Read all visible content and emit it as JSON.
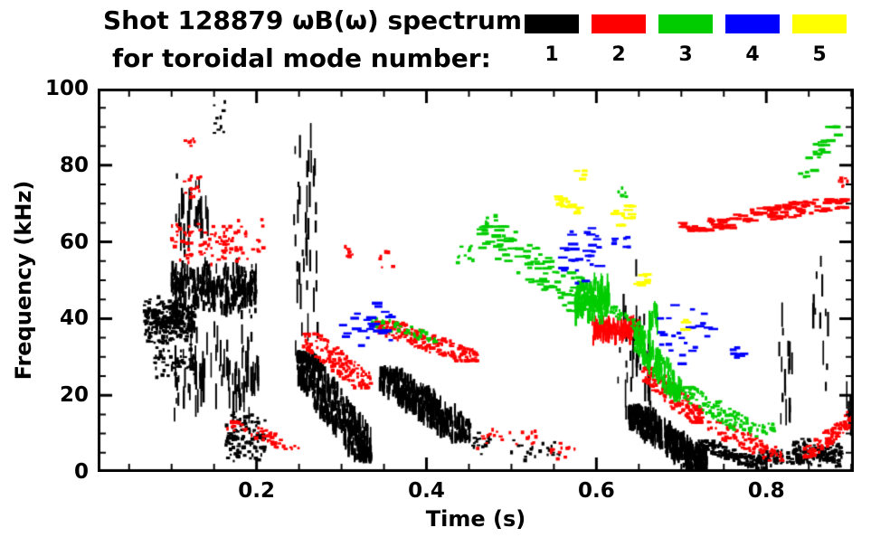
{
  "chart_data": {
    "type": "scatter",
    "title": "Shot 128879 ωB(ω) spectrum",
    "subtitle": "for toroidal mode number:",
    "xlabel": "Time (s)",
    "ylabel": "Frequency (kHz)",
    "xlim": [
      0.013,
      0.903
    ],
    "ylim": [
      0,
      100
    ],
    "xticks": [
      0.2,
      0.4,
      0.6,
      0.8
    ],
    "xtick_labels": [
      "0.2",
      "0.4",
      "0.6",
      "0.8"
    ],
    "yticks": [
      0,
      20,
      40,
      60,
      80,
      100
    ],
    "ytick_labels": [
      "0",
      "20",
      "40",
      "60",
      "80",
      "100"
    ],
    "x_minor_step": 0.05,
    "y_minor_step": 5,
    "grid": false,
    "legend_position": "top-right",
    "legend": [
      {
        "label": "1",
        "color": "#000000"
      },
      {
        "label": "2",
        "color": "#ff0000"
      },
      {
        "label": "3",
        "color": "#00cc00"
      },
      {
        "label": "4",
        "color": "#0000ff"
      },
      {
        "label": "5",
        "color": "#ffff00"
      }
    ],
    "series": [
      {
        "name": "n=1",
        "color": "#000000",
        "clusters": [
          {
            "t": [
              0.068,
              0.128
            ],
            "f": [
              33,
              46
            ],
            "n": 300
          },
          {
            "t": [
              0.08,
              0.128
            ],
            "f": [
              24,
              33
            ],
            "n": 55
          },
          {
            "t": [
              0.1,
              0.2
            ],
            "f": [
              40,
              56
            ],
            "n": 280,
            "style": "stripes"
          },
          {
            "t": [
              0.1,
              0.2
            ],
            "f": [
              14,
              40
            ],
            "n": 70,
            "style": "streaks"
          },
          {
            "t": [
              0.105,
              0.145
            ],
            "f": [
              56,
              80
            ],
            "n": 34,
            "style": "streaks"
          },
          {
            "t": [
              0.15,
              0.168
            ],
            "f": [
              86,
              97
            ],
            "n": 10
          },
          {
            "t": [
              0.163,
              0.21
            ],
            "f": [
              2,
              16
            ],
            "n": 120
          },
          {
            "t": [
              0.175,
              0.205
            ],
            "f": [
              16,
              30
            ],
            "n": 26,
            "style": "streaks"
          },
          {
            "t": [
              0.243,
              0.272
            ],
            "f": [
              20,
              97
            ],
            "n": 40,
            "style": "streaks"
          },
          {
            "t": [
              0.248,
              0.335
            ],
            "f": [
              4,
              30
            ],
            "n": 430,
            "style": "stripes",
            "trend": "down"
          },
          {
            "t": [
              0.345,
              0.452
            ],
            "f": [
              9,
              26
            ],
            "n": 340,
            "style": "stripes",
            "trend": "down"
          },
          {
            "t": [
              0.455,
              0.475
            ],
            "f": [
              4,
              11
            ],
            "n": 16
          },
          {
            "t": [
              0.5,
              0.565
            ],
            "f": [
              2,
              9
            ],
            "n": 22
          },
          {
            "t": [
              0.625,
              0.665
            ],
            "f": [
              5,
              55
            ],
            "n": 34,
            "style": "streaks"
          },
          {
            "t": [
              0.638,
              0.73
            ],
            "f": [
              1,
              16
            ],
            "n": 430,
            "style": "stripes",
            "trend": "down"
          },
          {
            "t": [
              0.72,
              0.8
            ],
            "f": [
              1,
              8
            ],
            "n": 140,
            "trend": "down"
          },
          {
            "t": [
              0.79,
              0.89
            ],
            "f": [
              1,
              6
            ],
            "n": 130
          },
          {
            "t": [
              0.83,
              0.89
            ],
            "f": [
              2,
              9
            ],
            "n": 90
          },
          {
            "t": [
              0.815,
              0.832
            ],
            "f": [
              8,
              46
            ],
            "n": 16,
            "style": "streaks"
          },
          {
            "t": [
              0.855,
              0.875
            ],
            "f": [
              10,
              60
            ],
            "n": 12,
            "style": "streaks"
          },
          {
            "t": [
              0.893,
              0.902
            ],
            "f": [
              8,
              22
            ],
            "n": 10,
            "style": "streaks"
          }
        ]
      },
      {
        "name": "n=2",
        "color": "#ff0000",
        "clusters": [
          {
            "t": [
              0.1,
              0.21
            ],
            "f": [
              54,
              66
            ],
            "n": 110
          },
          {
            "t": [
              0.115,
              0.135
            ],
            "f": [
              70,
              79
            ],
            "n": 16
          },
          {
            "t": [
              0.115,
              0.127
            ],
            "f": [
              84,
              88
            ],
            "n": 6
          },
          {
            "t": [
              0.165,
              0.25
            ],
            "f": [
              6,
              13
            ],
            "n": 55,
            "trend": "down"
          },
          {
            "t": [
              0.255,
              0.335
            ],
            "f": [
              22,
              36
            ],
            "n": 150,
            "trend": "down"
          },
          {
            "t": [
              0.34,
              0.46
            ],
            "f": [
              29,
              39
            ],
            "n": 220,
            "trend": "down"
          },
          {
            "t": [
              0.295,
              0.315
            ],
            "f": [
              54,
              60
            ],
            "n": 8
          },
          {
            "t": [
              0.46,
              0.53
            ],
            "f": [
              6,
              12
            ],
            "n": 22
          },
          {
            "t": [
              0.545,
              0.575
            ],
            "f": [
              3,
              8
            ],
            "n": 12
          },
          {
            "t": [
              0.595,
              0.65
            ],
            "f": [
              34,
              40
            ],
            "n": 150,
            "style": "stripes"
          },
          {
            "t": [
              0.655,
              0.725
            ],
            "f": [
              13,
              27
            ],
            "n": 180,
            "trend": "down"
          },
          {
            "t": [
              0.73,
              0.82
            ],
            "f": [
              3,
              13
            ],
            "n": 90,
            "trend": "down"
          },
          {
            "t": [
              0.7,
              0.895
            ],
            "f": [
              63,
              71
            ],
            "n": 130,
            "style": "dashes",
            "trend": "up"
          },
          {
            "t": [
              0.845,
              0.895
            ],
            "f": [
              4,
              13
            ],
            "n": 85,
            "trend": "up"
          },
          {
            "t": [
              0.893,
              0.902
            ],
            "f": [
              10,
              16
            ],
            "n": 10
          },
          {
            "t": [
              0.885,
              0.9
            ],
            "f": [
              73,
              79
            ],
            "n": 7
          },
          {
            "t": [
              0.345,
              0.365
            ],
            "f": [
              53,
              58
            ],
            "n": 6
          }
        ]
      },
      {
        "name": "n=3",
        "color": "#00cc00",
        "clusters": [
          {
            "t": [
              0.33,
              0.42
            ],
            "f": [
              34,
              40
            ],
            "n": 42,
            "trend": "down"
          },
          {
            "t": [
              0.435,
              0.455
            ],
            "f": [
              54,
              61
            ],
            "n": 10
          },
          {
            "t": [
              0.465,
              0.6
            ],
            "f": [
              42,
              64
            ],
            "n": 100,
            "style": "dashes",
            "trend": "down"
          },
          {
            "t": [
              0.575,
              0.615
            ],
            "f": [
              39,
              51
            ],
            "n": 180,
            "style": "stripes"
          },
          {
            "t": [
              0.615,
              0.655
            ],
            "f": [
              37,
              43
            ],
            "n": 40,
            "trend": "down"
          },
          {
            "t": [
              0.645,
              0.7
            ],
            "f": [
              20,
              36
            ],
            "n": 170,
            "style": "stripes",
            "trend": "down"
          },
          {
            "t": [
              0.7,
              0.78
            ],
            "f": [
              11,
              22
            ],
            "n": 110,
            "trend": "down"
          },
          {
            "t": [
              0.78,
              0.81
            ],
            "f": [
              9,
              13
            ],
            "n": 22
          },
          {
            "t": [
              0.84,
              0.885
            ],
            "f": [
              77,
              90
            ],
            "n": 26,
            "style": "dashes",
            "trend": "up"
          },
          {
            "t": [
              0.47,
              0.485
            ],
            "f": [
              64,
              68
            ],
            "n": 5
          },
          {
            "t": [
              0.625,
              0.64
            ],
            "f": [
              70,
              75
            ],
            "n": 6
          },
          {
            "t": [
              0.66,
              0.672
            ],
            "f": [
              36,
              44
            ],
            "n": 12,
            "style": "streaks"
          }
        ]
      },
      {
        "name": "n=4",
        "color": "#0000ff",
        "clusters": [
          {
            "t": [
              0.295,
              0.36
            ],
            "f": [
              32,
              46
            ],
            "n": 26,
            "style": "dashes"
          },
          {
            "t": [
              0.555,
              0.605
            ],
            "f": [
              49,
              65
            ],
            "n": 30,
            "style": "dashes"
          },
          {
            "t": [
              0.62,
              0.64
            ],
            "f": [
              57,
              63
            ],
            "n": 7,
            "style": "dashes"
          },
          {
            "t": [
              0.675,
              0.74
            ],
            "f": [
              27,
              46
            ],
            "n": 26,
            "style": "dashes"
          },
          {
            "t": [
              0.755,
              0.775
            ],
            "f": [
              28,
              33
            ],
            "n": 7,
            "style": "dashes"
          }
        ]
      },
      {
        "name": "n=5",
        "color": "#ffff00",
        "clusters": [
          {
            "t": [
              0.555,
              0.585
            ],
            "f": [
              66,
              74
            ],
            "n": 16,
            "style": "dashes"
          },
          {
            "t": [
              0.575,
              0.59
            ],
            "f": [
              75,
              79
            ],
            "n": 4,
            "style": "dashes"
          },
          {
            "t": [
              0.62,
              0.645
            ],
            "f": [
              62,
              71
            ],
            "n": 14,
            "style": "dashes"
          },
          {
            "t": [
              0.648,
              0.665
            ],
            "f": [
              47,
              53
            ],
            "n": 9,
            "style": "dashes"
          },
          {
            "t": [
              0.7,
              0.712
            ],
            "f": [
              36,
              40
            ],
            "n": 4,
            "style": "dashes"
          }
        ]
      }
    ]
  }
}
